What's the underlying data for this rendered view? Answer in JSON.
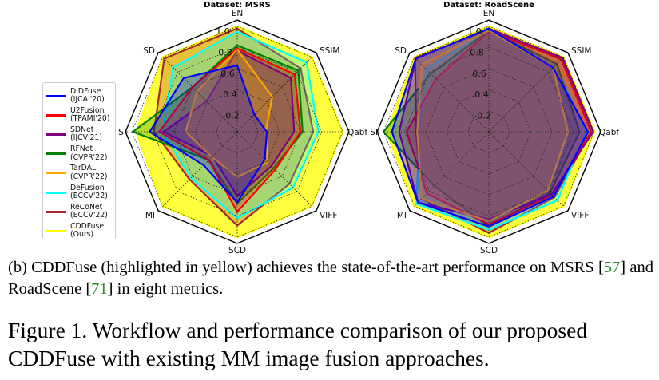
{
  "chart_data": [
    {
      "type": "radar",
      "title": "Dataset: MSRS",
      "axes": [
        "EN",
        "SSIM",
        "Qabf",
        "VIFF",
        "SCD",
        "MI",
        "SF",
        "SD"
      ],
      "radial_ticks": [
        "0.2",
        "0.4",
        "0.6",
        "0.8",
        "1.0"
      ],
      "rlim": [
        0,
        1.0
      ],
      "grid": true,
      "series": [
        {
          "name": "CDDFuse (Ours)",
          "color": "#ffff00",
          "values": [
            1.0,
            1.0,
            1.0,
            1.0,
            1.0,
            1.0,
            0.96,
            1.0
          ]
        },
        {
          "name": "ReCoNet (ECCV'22)",
          "color": "#a52a2a",
          "values": [
            0.98,
            0.85,
            0.72,
            0.7,
            0.89,
            0.64,
            0.79,
            0.98
          ]
        },
        {
          "name": "DeFusion (ECCV'22)",
          "color": "#00ffff",
          "values": [
            0.95,
            0.93,
            0.77,
            0.75,
            0.82,
            0.62,
            0.71,
            0.86
          ]
        },
        {
          "name": "RFNet (CVPR'22)",
          "color": "#008000",
          "values": [
            0.82,
            0.82,
            0.62,
            0.49,
            0.68,
            0.38,
            0.99,
            0.6
          ]
        },
        {
          "name": "U2Fusion (TPAMI'20)",
          "color": "#ff0000",
          "values": [
            0.79,
            0.77,
            0.6,
            0.51,
            0.76,
            0.38,
            0.74,
            0.6
          ]
        },
        {
          "name": "SDNet (IJCV'21)",
          "color": "#800080",
          "values": [
            0.77,
            0.72,
            0.54,
            0.46,
            0.61,
            0.33,
            0.7,
            0.41
          ]
        },
        {
          "name": "TarDAL (CVPR'22)",
          "color": "#ffa500",
          "values": [
            0.78,
            0.47,
            0.27,
            0.41,
            0.43,
            0.34,
            0.49,
            0.54
          ]
        },
        {
          "name": "DIDFuse (IJCAI'20)",
          "color": "#0000ff",
          "values": [
            0.63,
            0.23,
            0.28,
            0.37,
            0.67,
            0.45,
            0.83,
            0.72
          ]
        }
      ]
    },
    {
      "type": "radar",
      "title": "Dataset: RoadScene",
      "axes": [
        "EN",
        "SSIM",
        "Qabf",
        "VIFF",
        "SCD",
        "MI",
        "SF",
        "SD"
      ],
      "radial_ticks": [
        "0.2",
        "0.4",
        "0.6",
        "0.8",
        "1.0"
      ],
      "rlim": [
        0,
        1.0
      ],
      "grid": true,
      "series": [
        {
          "name": "CDDFuse (Ours)",
          "color": "#ffff00",
          "values": [
            1.0,
            1.0,
            1.0,
            1.0,
            1.0,
            1.0,
            0.97,
            1.0
          ]
        },
        {
          "name": "ReCoNet (ECCV'22)",
          "color": "#a52a2a",
          "values": [
            0.97,
            0.97,
            0.97,
            0.88,
            0.96,
            0.9,
            0.69,
            0.99
          ]
        },
        {
          "name": "DeFusion (ECCV'22)",
          "color": "#00ffff",
          "values": [
            0.97,
            0.9,
            0.92,
            0.92,
            0.93,
            0.97,
            0.66,
            0.84
          ]
        },
        {
          "name": "RFNet (CVPR'22)",
          "color": "#008000",
          "values": [
            0.96,
            0.91,
            0.86,
            0.82,
            0.9,
            0.73,
            1.0,
            0.78
          ]
        },
        {
          "name": "U2Fusion (TPAMI'20)",
          "color": "#ff0000",
          "values": [
            0.95,
            0.98,
            0.97,
            0.85,
            0.88,
            0.83,
            0.78,
            0.71
          ]
        },
        {
          "name": "SDNet (IJCV'21)",
          "color": "#800080",
          "values": [
            0.98,
            0.99,
            0.99,
            0.84,
            0.83,
            0.95,
            0.85,
            0.98
          ]
        },
        {
          "name": "TarDAL (CVPR'22)",
          "color": "#ffa500",
          "values": [
            0.96,
            0.86,
            0.75,
            0.79,
            0.85,
            0.9,
            0.68,
            0.9
          ]
        },
        {
          "name": "DIDFuse (IJCAI'20)",
          "color": "#0000ff",
          "values": [
            0.98,
            0.86,
            0.94,
            0.87,
            0.9,
            0.95,
            0.92,
            0.98
          ]
        }
      ]
    }
  ],
  "legend": [
    {
      "line1": "DIDFuse",
      "line2": "(IJCAI'20)",
      "color": "#0000ff"
    },
    {
      "line1": "U2Fusion",
      "line2": "(TPAMI'20)",
      "color": "#ff0000"
    },
    {
      "line1": "SDNet",
      "line2": "(IJCV'21)",
      "color": "#800080"
    },
    {
      "line1": "RFNet",
      "line2": "(CVPR'22)",
      "color": "#008000"
    },
    {
      "line1": "TarDAL",
      "line2": "(CVPR'22)",
      "color": "#ffa500"
    },
    {
      "line1": "DeFusion",
      "line2": "(ECCV'22)",
      "color": "#00ffff"
    },
    {
      "line1": "ReCoNet",
      "line2": "(ECCV'22)",
      "color": "#a52a2a"
    },
    {
      "line1": "CDDFuse",
      "line2": "(Ours)",
      "color": "#ffff00"
    }
  ],
  "caption": {
    "sub_a": "(b) CDDFuse (highlighted in yellow) achieves the state-of-the-art performance on MSRS [",
    "cite1": "57",
    "sub_b": "] and RoadScene [",
    "cite2": "71",
    "sub_c": "] in eight metrics.",
    "figure": "Figure 1. Workflow and performance comparison of our proposed CDDFuse with existing MM image fusion approaches."
  }
}
